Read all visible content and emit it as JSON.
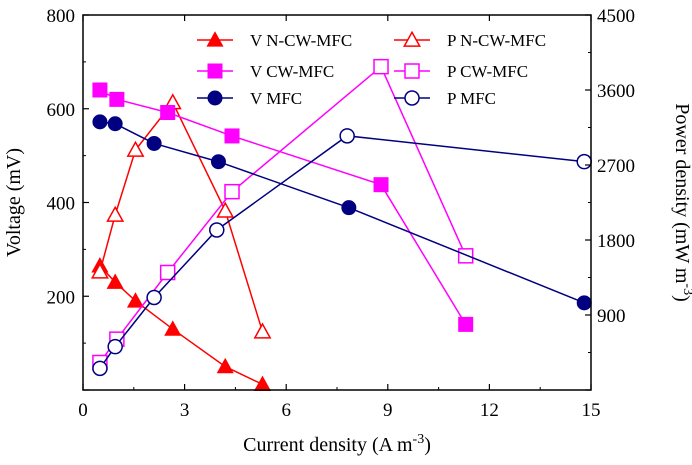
{
  "chart_data": {
    "type": "line",
    "xlabel": "Current density (A m",
    "xlabel_sup": "-3",
    "xlabel_tail": ")",
    "ylabel": "Voltage (mV)",
    "y2label": "Power density (mW m",
    "y2label_sup": "-3",
    "y2label_tail": ")",
    "xlim": [
      0,
      15
    ],
    "ylim": [
      0,
      800
    ],
    "y2lim": [
      0,
      4500
    ],
    "xticks": [
      "0",
      "3",
      "6",
      "9",
      "12",
      "15"
    ],
    "yticks": [
      "200",
      "400",
      "600",
      "800"
    ],
    "y2ticks": [
      "900",
      "1800",
      "2700",
      "3600",
      "4500"
    ],
    "legend_position": "top",
    "series": [
      {
        "name": "V N-CW-MFC",
        "axis": "left",
        "color": "#ff0000",
        "marker": "triangle",
        "filled": true,
        "x": [
          0.5,
          0.95,
          1.55,
          2.65,
          4.2,
          5.3
        ],
        "y": [
          265,
          230,
          190,
          130,
          50,
          12
        ]
      },
      {
        "name": "P N-CW-MFC",
        "axis": "right",
        "color": "#ff0000",
        "marker": "triangle",
        "filled": false,
        "x": [
          0.5,
          0.95,
          1.55,
          2.65,
          4.2,
          5.3
        ],
        "y": [
          1420,
          2100,
          2880,
          3450,
          2150,
          700
        ]
      },
      {
        "name": "V CW-MFC",
        "axis": "left",
        "color": "#ff00ff",
        "marker": "square",
        "filled": true,
        "x": [
          0.5,
          1.0,
          2.5,
          4.4,
          8.8,
          11.3
        ],
        "y": [
          640,
          620,
          592,
          542,
          438,
          140
        ]
      },
      {
        "name": "P CW-MFC",
        "axis": "right",
        "color": "#ff00ff",
        "marker": "square",
        "filled": false,
        "x": [
          0.5,
          1.0,
          2.5,
          4.4,
          8.8,
          11.3
        ],
        "y": [
          330,
          610,
          1410,
          2380,
          3880,
          1610
        ]
      },
      {
        "name": "V MFC",
        "axis": "left",
        "color": "#000080",
        "marker": "circle",
        "filled": true,
        "x": [
          0.5,
          0.95,
          2.1,
          4.0,
          7.85,
          14.8
        ],
        "y": [
          572,
          568,
          526,
          487,
          389,
          186
        ]
      },
      {
        "name": "P MFC",
        "axis": "right",
        "color": "#000080",
        "marker": "circle",
        "filled": false,
        "x": [
          0.5,
          0.95,
          2.1,
          3.95,
          7.8,
          14.8
        ],
        "y": [
          260,
          520,
          1110,
          1920,
          3050,
          2740
        ]
      }
    ]
  }
}
